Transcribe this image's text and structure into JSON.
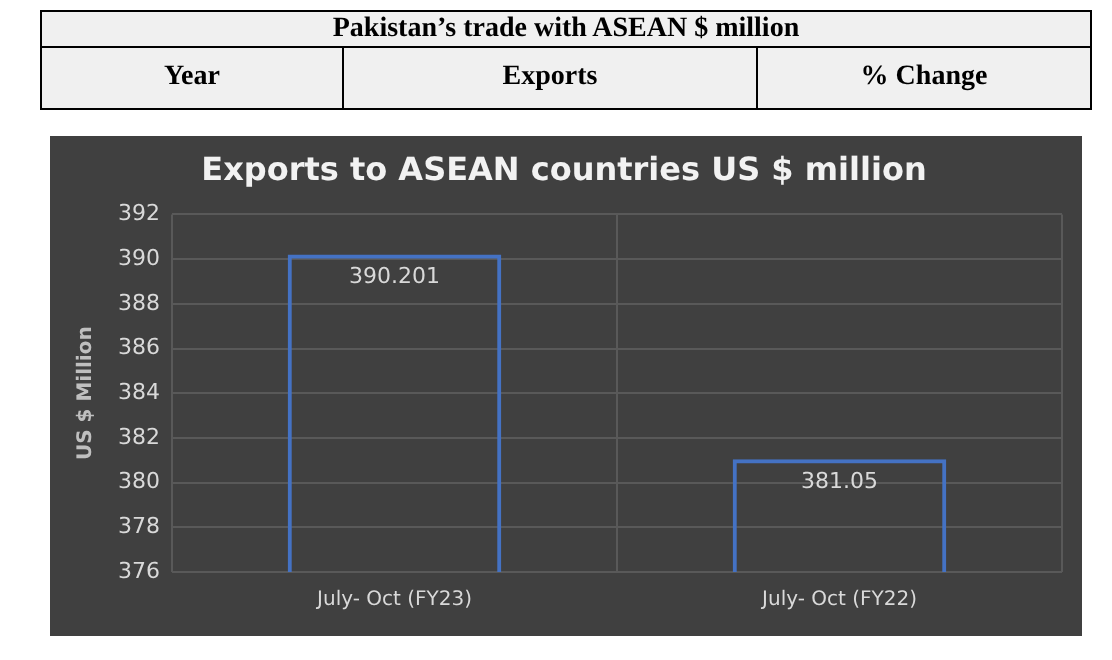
{
  "chart_data": {
    "type": "bar",
    "title": "Exports to ASEAN countries US $ million",
    "ylabel": "US $ Million",
    "annotations": [
      "Pakistan’s trade with ASEAN $ million",
      "Year",
      "Exports",
      "% Change"
    ],
    "categories": [
      "July- Oct (FY23)",
      "July- Oct (FY22)"
    ],
    "values": [
      390.201,
      381.05
    ],
    "color": "#4472c4",
    "ylim": [
      376,
      392
    ],
    "yticks": [
      376,
      378,
      380,
      382,
      384,
      386,
      388,
      390,
      392
    ],
    "grid": true,
    "data_labels": true
  }
}
